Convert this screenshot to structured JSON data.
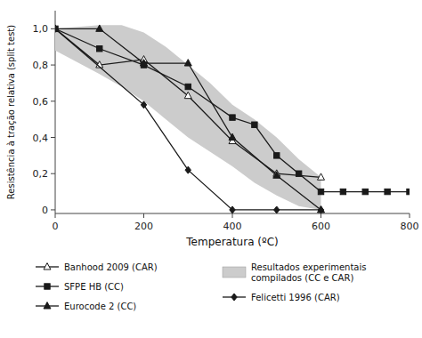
{
  "chart_data": {
    "type": "line",
    "xlabel": "Temperatura (ºC)",
    "ylabel": "Resistência à tração relativa (split test)",
    "xlim": [
      0,
      800
    ],
    "ylim": [
      -0.02,
      1.1
    ],
    "xticks": [
      0,
      200,
      400,
      600,
      800
    ],
    "yticks": [
      0,
      {
        "value": 0.2,
        "label": "0,2"
      },
      {
        "value": 0.4,
        "label": "0,4"
      },
      {
        "value": 0.6,
        "label": "0,6"
      },
      {
        "value": 0.8,
        "label": "0,8"
      },
      {
        "value": 1.0,
        "label": "1,0"
      }
    ],
    "grid": false,
    "legend": "bottom",
    "series": [
      {
        "name": "Banhood 2009 (CAR)",
        "type": "line",
        "marker": "triangle-open",
        "color": "#1a1a1a",
        "x": [
          0,
          100,
          200,
          300,
          400,
          500,
          600
        ],
        "values": [
          1.0,
          0.8,
          0.83,
          0.63,
          0.38,
          0.2,
          0.18
        ]
      },
      {
        "name": "SFPE HB (CC)",
        "type": "line",
        "marker": "square",
        "color": "#1a1a1a",
        "x": [
          0,
          100,
          200,
          300,
          400,
          450,
          500,
          550,
          600,
          650,
          700,
          750,
          800
        ],
        "values": [
          1.0,
          0.89,
          0.8,
          0.68,
          0.51,
          0.47,
          0.3,
          0.2,
          0.1,
          0.1,
          0.1,
          0.1,
          0.1
        ]
      },
      {
        "name": "Eurocode 2 (CC)",
        "type": "line",
        "marker": "triangle",
        "color": "#1a1a1a",
        "x": [
          0,
          100,
          200,
          300,
          400,
          500,
          600
        ],
        "values": [
          1.0,
          1.0,
          0.81,
          0.81,
          0.4,
          0.19,
          0.0
        ]
      },
      {
        "name": "Resultados experimentais\ncompilados (CC e CAR)",
        "type": "area",
        "color": "#cccccc",
        "x": [
          0,
          100,
          150,
          200,
          250,
          300,
          350,
          400,
          450,
          500,
          550,
          600
        ],
        "values": [
          1.0,
          1.02,
          1.02,
          0.98,
          0.9,
          0.8,
          0.7,
          0.58,
          0.5,
          0.4,
          0.28,
          0.18
        ],
        "lower": [
          0.88,
          0.75,
          0.68,
          0.6,
          0.5,
          0.4,
          0.32,
          0.24,
          0.15,
          0.08,
          0.02,
          0.0
        ]
      },
      {
        "name": "Felicetti 1996 (CAR)",
        "type": "line",
        "marker": "diamond",
        "color": "#1a1a1a",
        "x": [
          0,
          200,
          300,
          400,
          500,
          600
        ],
        "values": [
          1.0,
          0.58,
          0.22,
          0.0,
          0.0,
          0.0
        ]
      }
    ]
  }
}
